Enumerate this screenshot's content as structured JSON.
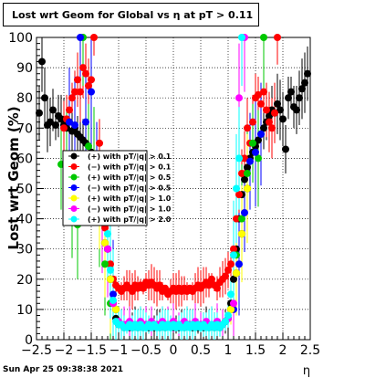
{
  "title": "Lost wrt Geom for Global vs  η at pT > 0.11",
  "footer": "Sun Apr 25 09:38:38 2021",
  "chart_data": {
    "type": "scatter",
    "title": "Lost wrt Geom for Global vs  η at pT > 0.11",
    "xlabel": "η",
    "ylabel": "Lost wrt Geom (%)",
    "xlim": [
      -2.5,
      2.5
    ],
    "ylim": [
      0,
      100
    ],
    "x_ticks": [
      "−2.5",
      "−2",
      "−1.5",
      "−1",
      "−0.5",
      "0",
      "0.5",
      "1",
      "1.5",
      "2",
      "2.5"
    ],
    "y_ticks": [
      "0",
      "10",
      "20",
      "30",
      "40",
      "50",
      "60",
      "70",
      "80",
      "90",
      "100"
    ],
    "grid": true,
    "legend_position": "middle-left",
    "series": [
      {
        "name": "(+) with pT/|q| > 0.1",
        "color": "#000000",
        "points": [
          [
            -2.45,
            75
          ],
          [
            -2.4,
            92
          ],
          [
            -2.35,
            80
          ],
          [
            -2.3,
            71
          ],
          [
            -2.25,
            72
          ],
          [
            -2.2,
            76
          ],
          [
            -2.15,
            71
          ],
          [
            -2.1,
            74
          ],
          [
            -2.05,
            73
          ],
          [
            -2.0,
            71
          ],
          [
            -1.95,
            70
          ],
          [
            -1.9,
            72
          ],
          [
            -1.85,
            69
          ],
          [
            -1.8,
            70
          ],
          [
            -1.75,
            68
          ],
          [
            -1.7,
            67
          ],
          [
            -1.65,
            66
          ],
          [
            -1.6,
            65
          ],
          [
            -1.55,
            64
          ],
          [
            -1.5,
            62
          ],
          [
            -1.45,
            60
          ],
          [
            -1.4,
            55
          ],
          [
            -1.35,
            50
          ],
          [
            -1.3,
            45
          ],
          [
            -1.25,
            38
          ],
          [
            -1.2,
            30
          ],
          [
            -1.15,
            20
          ],
          [
            -1.1,
            12
          ],
          [
            -1.05,
            7
          ],
          [
            -1.0,
            5
          ],
          [
            -0.95,
            5
          ],
          [
            -0.9,
            4
          ],
          [
            -0.85,
            5
          ],
          [
            -0.8,
            4
          ],
          [
            -0.75,
            4
          ],
          [
            -0.7,
            5
          ],
          [
            -0.65,
            4
          ],
          [
            -0.6,
            5
          ],
          [
            -0.55,
            4
          ],
          [
            -0.5,
            5
          ],
          [
            -0.45,
            4
          ],
          [
            -0.4,
            5
          ],
          [
            -0.35,
            4
          ],
          [
            -0.3,
            5
          ],
          [
            -0.25,
            4
          ],
          [
            -0.2,
            5
          ],
          [
            -0.15,
            4
          ],
          [
            -0.1,
            5
          ],
          [
            -0.05,
            5
          ],
          [
            0.0,
            4
          ],
          [
            0.05,
            5
          ],
          [
            0.1,
            4
          ],
          [
            0.15,
            5
          ],
          [
            0.2,
            4
          ],
          [
            0.25,
            5
          ],
          [
            0.3,
            5
          ],
          [
            0.35,
            4
          ],
          [
            0.4,
            5
          ],
          [
            0.45,
            4
          ],
          [
            0.5,
            5
          ],
          [
            0.55,
            4
          ],
          [
            0.6,
            5
          ],
          [
            0.65,
            4
          ],
          [
            0.7,
            5
          ],
          [
            0.75,
            4
          ],
          [
            0.8,
            5
          ],
          [
            0.85,
            4
          ],
          [
            0.9,
            5
          ],
          [
            0.95,
            6
          ],
          [
            1.0,
            7
          ],
          [
            1.05,
            12
          ],
          [
            1.1,
            20
          ],
          [
            1.15,
            30
          ],
          [
            1.2,
            40
          ],
          [
            1.25,
            48
          ],
          [
            1.3,
            53
          ],
          [
            1.35,
            57
          ],
          [
            1.4,
            60
          ],
          [
            1.45,
            62
          ],
          [
            1.5,
            64
          ],
          [
            1.55,
            66
          ],
          [
            1.6,
            68
          ],
          [
            1.65,
            70
          ],
          [
            1.7,
            72
          ],
          [
            1.75,
            74
          ],
          [
            1.8,
            76
          ],
          [
            1.85,
            75
          ],
          [
            1.9,
            78
          ],
          [
            1.95,
            76
          ],
          [
            2.0,
            73
          ],
          [
            2.05,
            63
          ],
          [
            2.1,
            80
          ],
          [
            2.15,
            82
          ],
          [
            2.2,
            77
          ],
          [
            2.25,
            76
          ],
          [
            2.3,
            80
          ],
          [
            2.35,
            83
          ],
          [
            2.4,
            85
          ],
          [
            2.45,
            88
          ]
        ]
      },
      {
        "name": "(−) with pT/|q| > 0.1",
        "color": "#ff0000",
        "points": [
          [
            -2.0,
            70
          ],
          [
            -1.95,
            73
          ],
          [
            -1.9,
            76
          ],
          [
            -1.85,
            80
          ],
          [
            -1.8,
            82
          ],
          [
            -1.75,
            86
          ],
          [
            -1.7,
            82
          ],
          [
            -1.65,
            90
          ],
          [
            -1.6,
            88
          ],
          [
            -1.55,
            84
          ],
          [
            -1.5,
            86
          ],
          [
            -1.45,
            100
          ],
          [
            -1.35,
            65
          ],
          [
            -1.3,
            45
          ],
          [
            -1.25,
            37
          ],
          [
            -1.2,
            30
          ],
          [
            -1.15,
            25
          ],
          [
            -1.1,
            20
          ],
          [
            -1.05,
            18
          ],
          [
            -1.0,
            17
          ],
          [
            -0.95,
            16
          ],
          [
            -0.9,
            17
          ],
          [
            -0.85,
            18
          ],
          [
            -0.8,
            17
          ],
          [
            -0.75,
            16
          ],
          [
            -0.7,
            18
          ],
          [
            -0.65,
            17
          ],
          [
            -0.6,
            18
          ],
          [
            -0.55,
            17
          ],
          [
            -0.5,
            19
          ],
          [
            -0.45,
            18
          ],
          [
            -0.4,
            19
          ],
          [
            -0.35,
            18
          ],
          [
            -0.3,
            17
          ],
          [
            -0.25,
            18
          ],
          [
            -0.2,
            16
          ],
          [
            -0.15,
            17
          ],
          [
            -0.1,
            15
          ],
          [
            -0.05,
            16
          ],
          [
            0.0,
            17
          ],
          [
            0.05,
            16
          ],
          [
            0.1,
            17
          ],
          [
            0.15,
            16
          ],
          [
            0.2,
            17
          ],
          [
            0.25,
            16
          ],
          [
            0.3,
            17
          ],
          [
            0.35,
            16
          ],
          [
            0.4,
            17
          ],
          [
            0.45,
            18
          ],
          [
            0.5,
            17
          ],
          [
            0.55,
            18
          ],
          [
            0.6,
            19
          ],
          [
            0.65,
            18
          ],
          [
            0.7,
            20
          ],
          [
            0.75,
            18
          ],
          [
            0.8,
            17
          ],
          [
            0.85,
            19
          ],
          [
            0.9,
            20
          ],
          [
            0.95,
            21
          ],
          [
            1.0,
            23
          ],
          [
            1.05,
            25
          ],
          [
            1.1,
            30
          ],
          [
            1.15,
            40
          ],
          [
            1.2,
            48
          ],
          [
            1.25,
            55
          ],
          [
            1.3,
            60
          ],
          [
            1.35,
            70
          ],
          [
            1.4,
            65
          ],
          [
            1.45,
            72
          ],
          [
            1.5,
            80
          ],
          [
            1.55,
            81
          ],
          [
            1.6,
            78
          ],
          [
            1.65,
            82
          ],
          [
            1.7,
            76
          ],
          [
            1.75,
            72
          ],
          [
            1.8,
            70
          ],
          [
            1.85,
            75
          ],
          [
            1.9,
            100
          ]
        ]
      },
      {
        "name": "(+) with pT/|q| > 0.5",
        "color": "#00c800",
        "points": [
          [
            -2.05,
            58
          ],
          [
            -1.95,
            61
          ],
          [
            -1.85,
            44
          ],
          [
            -1.75,
            38
          ],
          [
            -1.65,
            100
          ],
          [
            -1.55,
            64
          ],
          [
            -1.45,
            60
          ],
          [
            -1.35,
            42
          ],
          [
            -1.25,
            25
          ],
          [
            -1.15,
            12
          ],
          [
            1.15,
            28
          ],
          [
            1.25,
            40
          ],
          [
            1.35,
            55
          ],
          [
            1.45,
            65
          ],
          [
            1.55,
            60
          ],
          [
            1.65,
            100
          ]
        ]
      },
      {
        "name": "(−) with pT/|q| > 0.5",
        "color": "#0000ff",
        "points": [
          [
            -1.9,
            72
          ],
          [
            -1.8,
            71
          ],
          [
            -1.7,
            100
          ],
          [
            -1.6,
            72
          ],
          [
            -1.5,
            82
          ],
          [
            -1.4,
            55
          ],
          [
            -1.3,
            40
          ],
          [
            -1.2,
            30
          ],
          [
            -1.1,
            15
          ],
          [
            1.1,
            10
          ],
          [
            1.2,
            25
          ],
          [
            1.3,
            42
          ],
          [
            1.4,
            59
          ],
          [
            1.5,
            62
          ],
          [
            1.6,
            68
          ]
        ]
      },
      {
        "name": "(+) with pT/|q| > 1.0",
        "color": "#ffff00",
        "points": [
          [
            -1.35,
            45
          ],
          [
            -1.25,
            32
          ],
          [
            -1.15,
            20
          ],
          [
            -1.05,
            10
          ],
          [
            1.05,
            10
          ],
          [
            1.15,
            22
          ],
          [
            1.25,
            35
          ],
          [
            1.35,
            50
          ]
        ]
      },
      {
        "name": "(−) with pT/|q| > 1.0",
        "color": "#ff00ff",
        "points": [
          [
            -1.3,
            40
          ],
          [
            -1.2,
            30
          ],
          [
            -1.1,
            12
          ],
          [
            -1.0,
            6
          ],
          [
            -0.9,
            5
          ],
          [
            -0.8,
            6
          ],
          [
            -0.7,
            5
          ],
          [
            -0.6,
            6
          ],
          [
            -0.5,
            5
          ],
          [
            -0.4,
            6
          ],
          [
            -0.3,
            5
          ],
          [
            -0.2,
            6
          ],
          [
            -0.1,
            5
          ],
          [
            0.0,
            6
          ],
          [
            0.1,
            5
          ],
          [
            0.2,
            6
          ],
          [
            0.3,
            5
          ],
          [
            0.4,
            6
          ],
          [
            0.5,
            5
          ],
          [
            0.6,
            6
          ],
          [
            0.7,
            5
          ],
          [
            0.8,
            6
          ],
          [
            0.9,
            5
          ],
          [
            1.0,
            7
          ],
          [
            1.1,
            12
          ],
          [
            1.2,
            80
          ],
          [
            1.3,
            100
          ]
        ]
      },
      {
        "name": "(+) with pT/|q| > 2.0",
        "color": "#00ffff",
        "points": [
          [
            -1.2,
            35
          ],
          [
            -1.15,
            23
          ],
          [
            -1.1,
            13
          ],
          [
            -1.05,
            6
          ],
          [
            -1.0,
            5
          ],
          [
            -0.95,
            5
          ],
          [
            -0.9,
            4
          ],
          [
            -0.85,
            4
          ],
          [
            -0.8,
            5
          ],
          [
            -0.75,
            4
          ],
          [
            -0.7,
            5
          ],
          [
            -0.65,
            4
          ],
          [
            -0.6,
            5
          ],
          [
            -0.55,
            4
          ],
          [
            -0.5,
            4
          ],
          [
            -0.45,
            5
          ],
          [
            -0.4,
            4
          ],
          [
            -0.35,
            5
          ],
          [
            -0.3,
            4
          ],
          [
            -0.25,
            4
          ],
          [
            -0.2,
            5
          ],
          [
            -0.15,
            4
          ],
          [
            -0.1,
            5
          ],
          [
            -0.05,
            4
          ],
          [
            0.0,
            5
          ],
          [
            0.05,
            4
          ],
          [
            0.1,
            5
          ],
          [
            0.15,
            4
          ],
          [
            0.2,
            4
          ],
          [
            0.25,
            5
          ],
          [
            0.3,
            4
          ],
          [
            0.35,
            5
          ],
          [
            0.4,
            4
          ],
          [
            0.45,
            5
          ],
          [
            0.5,
            4
          ],
          [
            0.55,
            5
          ],
          [
            0.6,
            4
          ],
          [
            0.65,
            4
          ],
          [
            0.7,
            5
          ],
          [
            0.75,
            4
          ],
          [
            0.8,
            5
          ],
          [
            0.85,
            4
          ],
          [
            0.9,
            5
          ],
          [
            0.95,
            6
          ],
          [
            1.0,
            8
          ],
          [
            1.05,
            15
          ],
          [
            1.1,
            28
          ],
          [
            1.15,
            50
          ],
          [
            1.2,
            60
          ],
          [
            1.25,
            100
          ]
        ]
      }
    ]
  }
}
